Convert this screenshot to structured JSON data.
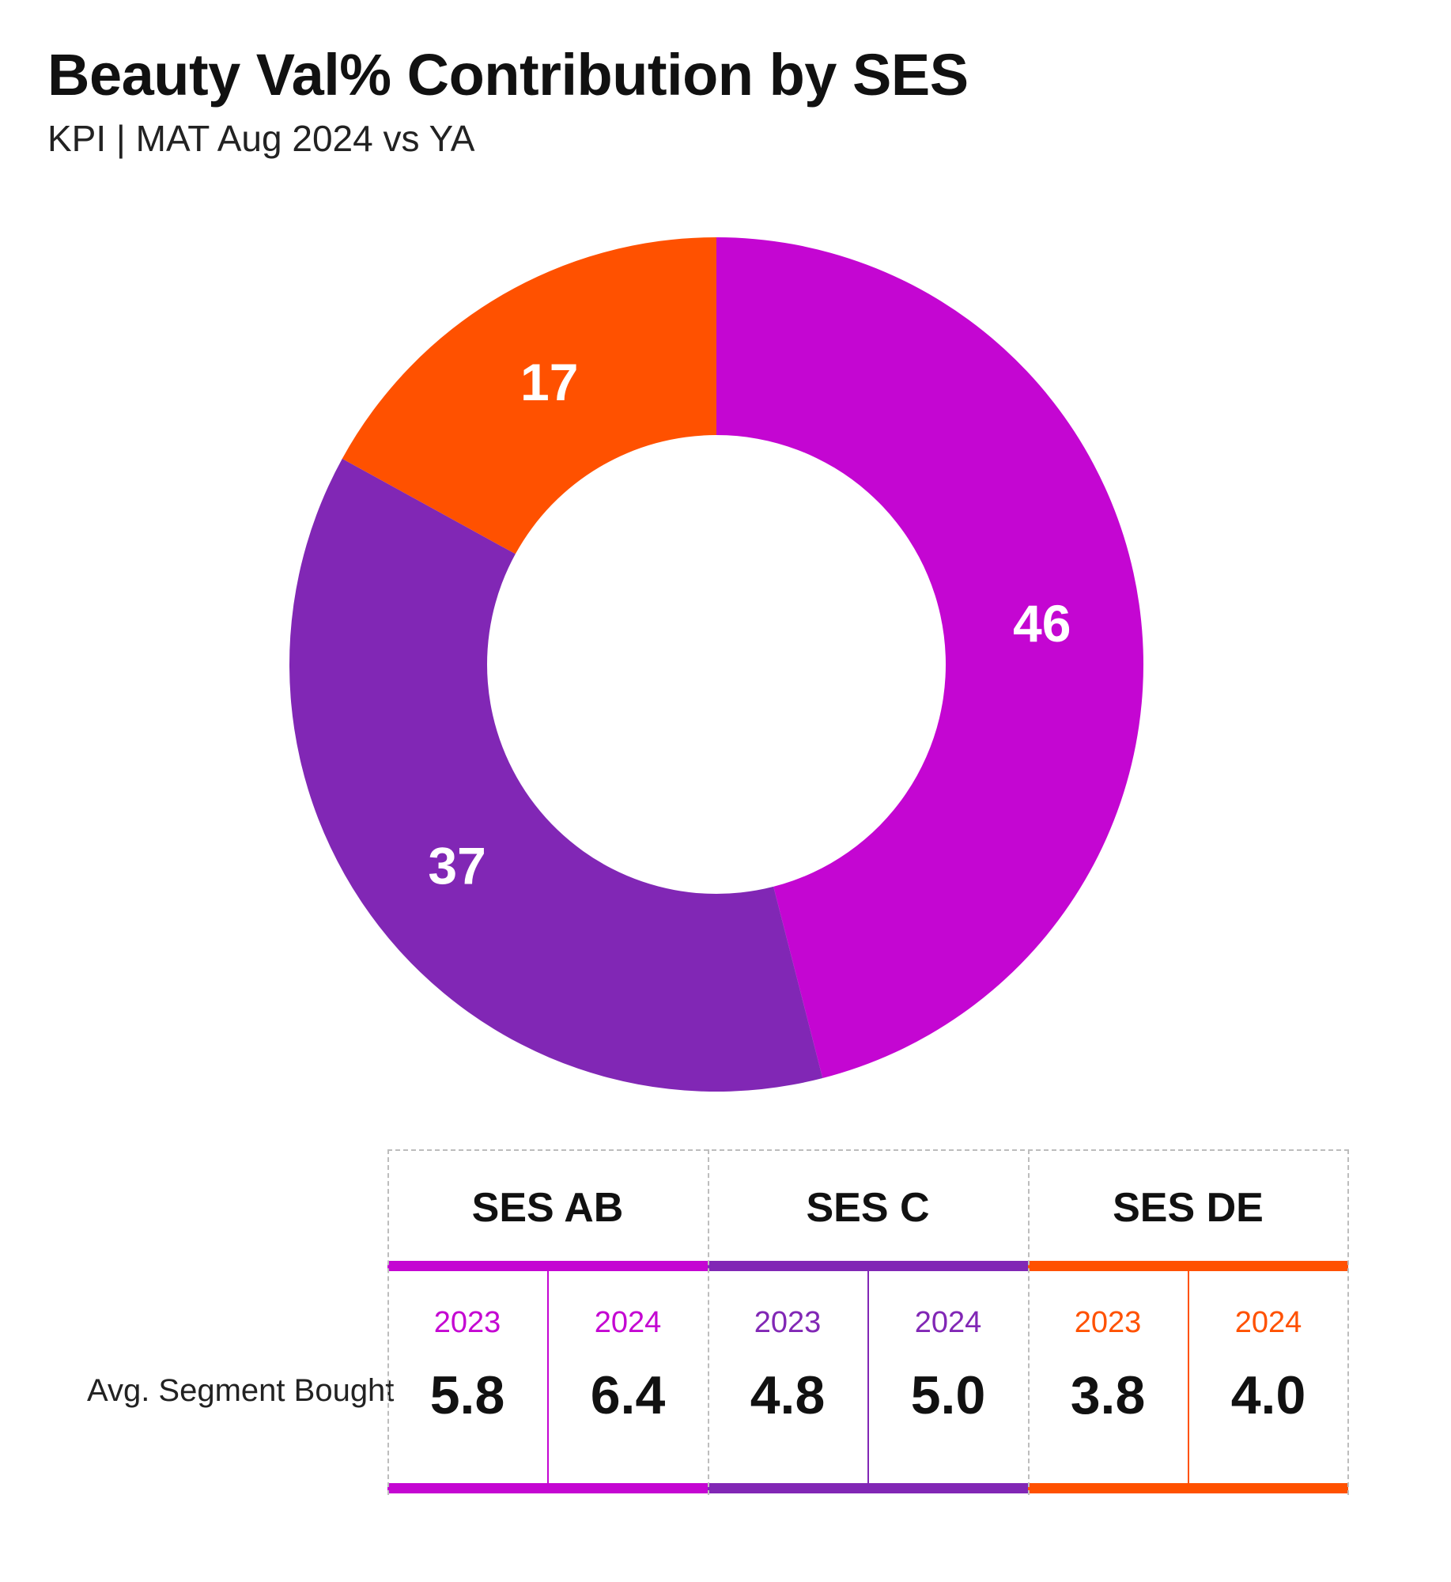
{
  "header": {
    "title": "Beauty Val% Contribution by SES",
    "subtitle": "KPI | MAT Aug 2024 vs YA"
  },
  "colors": {
    "ses_ab": "#C406D2",
    "ses_c": "#8127B5",
    "ses_de": "#FF5100"
  },
  "chart_data": {
    "type": "pie",
    "variant": "donut",
    "slices": [
      {
        "label": "SES AB",
        "value": 46,
        "color": "#C406D2"
      },
      {
        "label": "SES C",
        "value": 37,
        "color": "#8127B5"
      },
      {
        "label": "SES DE",
        "value": 17,
        "color": "#FF5100"
      }
    ]
  },
  "table": {
    "row_label": "Avg. Segment Bought",
    "groups": [
      {
        "name": "SES AB",
        "color": "#C406D2",
        "cells": [
          {
            "year": "2023",
            "value": "5.8"
          },
          {
            "year": "2024",
            "value": "6.4"
          }
        ]
      },
      {
        "name": "SES C",
        "color": "#8127B5",
        "cells": [
          {
            "year": "2023",
            "value": "4.8"
          },
          {
            "year": "2024",
            "value": "5.0"
          }
        ]
      },
      {
        "name": "SES DE",
        "color": "#FF5100",
        "cells": [
          {
            "year": "2023",
            "value": "3.8"
          },
          {
            "year": "2024",
            "value": "4.0"
          }
        ]
      }
    ]
  }
}
